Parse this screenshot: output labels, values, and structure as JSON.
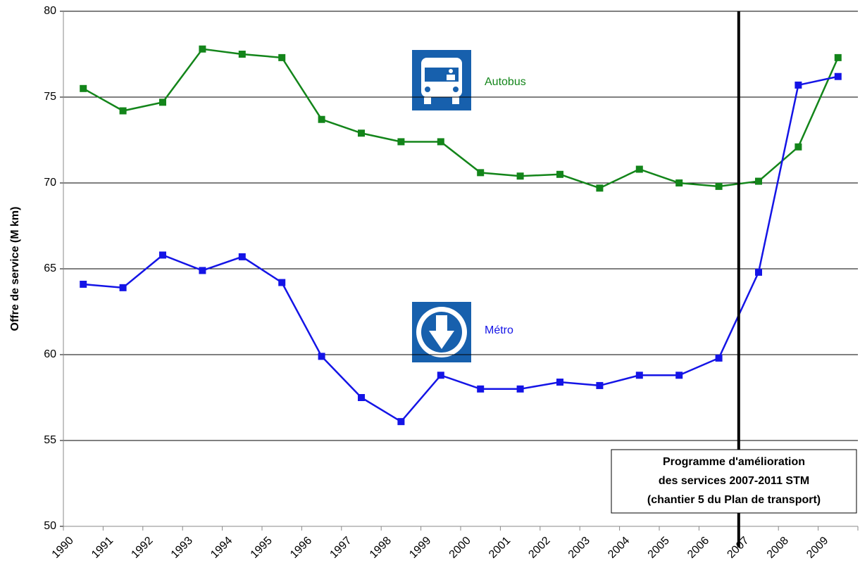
{
  "chart_data": {
    "type": "line",
    "y_label": "Offre de service (M km)",
    "categories": [
      "1990",
      "1991",
      "1992",
      "1993",
      "1994",
      "1995",
      "1996",
      "1997",
      "1998",
      "1999",
      "2000",
      "2001",
      "2002",
      "2003",
      "2004",
      "2005",
      "2006",
      "2007",
      "2008",
      "2009"
    ],
    "series": [
      {
        "name": "Autobus",
        "color": "#13851a",
        "values": [
          75.5,
          74.2,
          74.7,
          77.8,
          77.5,
          77.3,
          73.7,
          72.9,
          72.4,
          72.4,
          70.6,
          70.4,
          70.5,
          69.7,
          70.8,
          70.0,
          69.8,
          70.1,
          72.1,
          77.3
        ]
      },
      {
        "name": "Métro",
        "color": "#1414e6",
        "values": [
          64.1,
          63.9,
          65.8,
          64.9,
          65.7,
          64.2,
          59.9,
          57.5,
          56.1,
          58.8,
          58.0,
          58.0,
          58.4,
          58.2,
          58.8,
          58.8,
          59.8,
          64.8,
          75.7,
          76.2
        ]
      }
    ],
    "ylim": [
      50,
      80
    ],
    "yticks": [
      50,
      55,
      60,
      65,
      70,
      75,
      80
    ],
    "grid": true,
    "marker_line": "2007",
    "annotation": [
      "Programme d'amélioration",
      "des services 2007-2011 STM",
      "(chantier 5 du Plan de transport)"
    ]
  }
}
